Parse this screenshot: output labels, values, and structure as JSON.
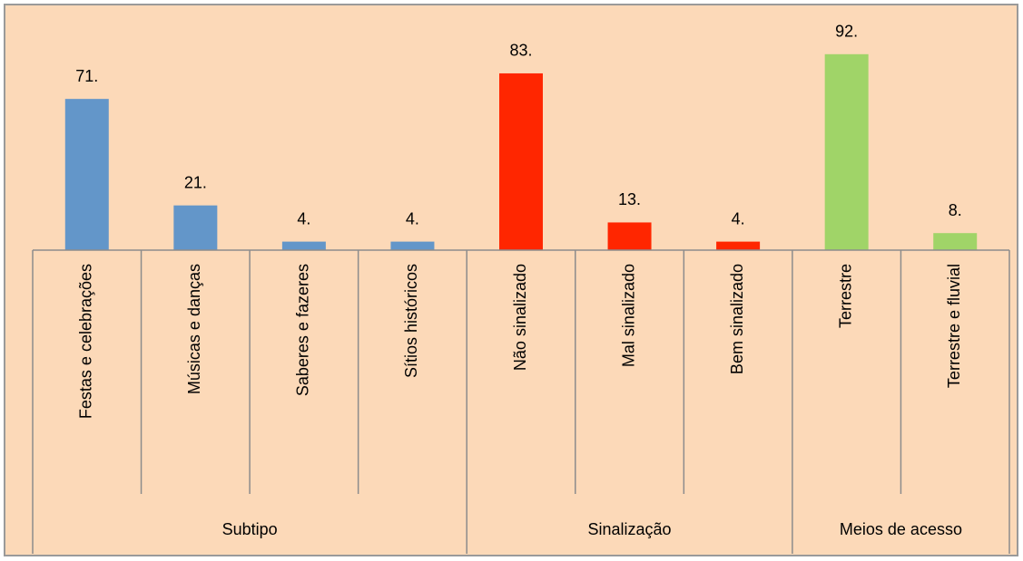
{
  "chart_data": {
    "type": "bar",
    "groups": [
      {
        "name": "Subtipo",
        "color": "#6396c9",
        "categories": [
          "Festas e celebrações",
          "Músicas e danças",
          "Saberes e fazeres",
          "Sítios históricos"
        ],
        "values": [
          71,
          21,
          4,
          4
        ],
        "value_labels": [
          "71.",
          "21.",
          "4.",
          "4."
        ]
      },
      {
        "name": "Sinalização",
        "color": "#ff2600",
        "categories": [
          "Não sinalizado",
          "Mal sinalizado",
          "Bem sinalizado"
        ],
        "values": [
          83,
          13,
          4
        ],
        "value_labels": [
          "83.",
          "13.",
          "4."
        ]
      },
      {
        "name": "Meios de acesso",
        "color": "#a0d468",
        "categories": [
          "Terrestre",
          "Terrestre e fluvial"
        ],
        "values": [
          92,
          8
        ],
        "value_labels": [
          "92.",
          "8."
        ]
      }
    ]
  }
}
